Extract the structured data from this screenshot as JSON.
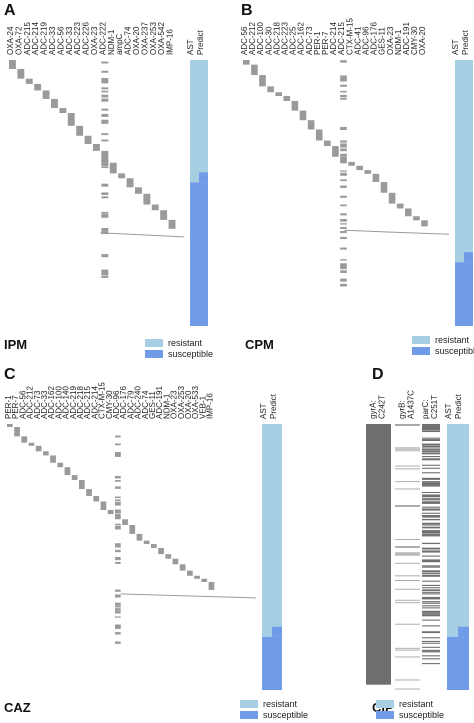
{
  "colors": {
    "gene_present": "#9a9a9a",
    "gene_dark": "#6f6f6f",
    "resistant": "#a7cfe4",
    "susceptible": "#6f9be8"
  },
  "legend": {
    "resistant": "resistant",
    "susceptible": "susceptible"
  },
  "panels": [
    {
      "letter": "A",
      "drug": "IPM",
      "genes": [
        "OXA-24",
        "OXA-72",
        "ADC-215",
        "ADC-214",
        "ADC-219",
        "ADC-33",
        "ADC-56",
        "ADC-33",
        "ADC-223",
        "ADC-226",
        "OXA-23",
        "ADC-222",
        "NDM-1",
        "ampC",
        "ADC-74",
        "OXA-20",
        "OXA-237",
        "OXA-253",
        "OXA-542",
        "IMP-16"
      ],
      "predict_label": "AST Predict",
      "resistant_fraction": 0.46
    },
    {
      "letter": "B",
      "drug": "CPM",
      "genes": [
        "ADC-56",
        "ADC-212",
        "ADC-100",
        "ADC-30",
        "ADC-218",
        "ADC-223",
        "ADC-25",
        "ADC-162",
        "ADC-73",
        "PER-1",
        "PER-7",
        "ADC-214",
        "ADC-215",
        "CTX-M-15",
        "ADC-41",
        "ADC-96",
        "ADC-176",
        "GES-11",
        "OXA-23",
        "NDM-1",
        "ADC-191",
        "CMY-30",
        "OXA-20"
      ],
      "predict_label": "AST Predict",
      "resistant_fraction": 0.76
    },
    {
      "letter": "C",
      "drug": "CAZ",
      "genes": [
        "PER-1",
        "PER-7",
        "ADC-56",
        "ADC-212",
        "ADC-73",
        "ADC-33",
        "ADC-162",
        "ADC-100",
        "ADC-140",
        "ADC-219",
        "ADC-218",
        "ADC-215",
        "ADC-214",
        "CTX-M-15",
        "CMY-30",
        "ADC-96",
        "ADC-176",
        "ADC-79",
        "ADC-240",
        "ADC-74",
        "GES-11",
        "ADC-191",
        "NDM-1",
        "OXA-23",
        "OXA-253",
        "OXA-20",
        "OXA-533",
        "VEB-1",
        "IMP-16"
      ],
      "predict_label": "AST Predict",
      "resistant_fraction": 0.8
    },
    {
      "letter": "D",
      "drug": "CIP",
      "genes": [
        "gyrA: C242T",
        "gyrB: A1437C",
        "parC: C251T"
      ],
      "predict_label": "AST Predict",
      "resistant_fraction": 0.8
    }
  ]
}
